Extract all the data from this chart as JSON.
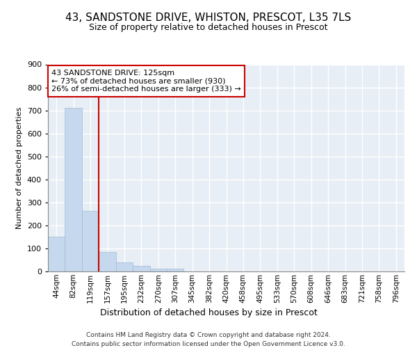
{
  "title_line1": "43, SANDSTONE DRIVE, WHISTON, PRESCOT, L35 7LS",
  "title_line2": "Size of property relative to detached houses in Prescot",
  "xlabel": "Distribution of detached houses by size in Prescot",
  "ylabel": "Number of detached properties",
  "categories": [
    "44sqm",
    "82sqm",
    "119sqm",
    "157sqm",
    "195sqm",
    "232sqm",
    "270sqm",
    "307sqm",
    "345sqm",
    "382sqm",
    "420sqm",
    "458sqm",
    "495sqm",
    "533sqm",
    "570sqm",
    "608sqm",
    "646sqm",
    "683sqm",
    "721sqm",
    "758sqm",
    "796sqm"
  ],
  "values": [
    150,
    710,
    263,
    85,
    38,
    25,
    13,
    13,
    0,
    0,
    0,
    0,
    0,
    0,
    0,
    0,
    0,
    0,
    0,
    0,
    0
  ],
  "bar_color": "#c5d8ed",
  "bar_edge_color": "#a0bcd8",
  "background_color": "#e8eef5",
  "grid_color": "#ffffff",
  "red_line_index": 2,
  "annotation_text_line1": "43 SANDSTONE DRIVE: 125sqm",
  "annotation_text_line2": "← 73% of detached houses are smaller (930)",
  "annotation_text_line3": "26% of semi-detached houses are larger (333) →",
  "annotation_box_color": "#ffffff",
  "annotation_border_color": "#cc0000",
  "red_line_color": "#cc0000",
  "footer_line1": "Contains HM Land Registry data © Crown copyright and database right 2024.",
  "footer_line2": "Contains public sector information licensed under the Open Government Licence v3.0.",
  "ylim": [
    0,
    900
  ],
  "yticks": [
    0,
    100,
    200,
    300,
    400,
    500,
    600,
    700,
    800,
    900
  ]
}
